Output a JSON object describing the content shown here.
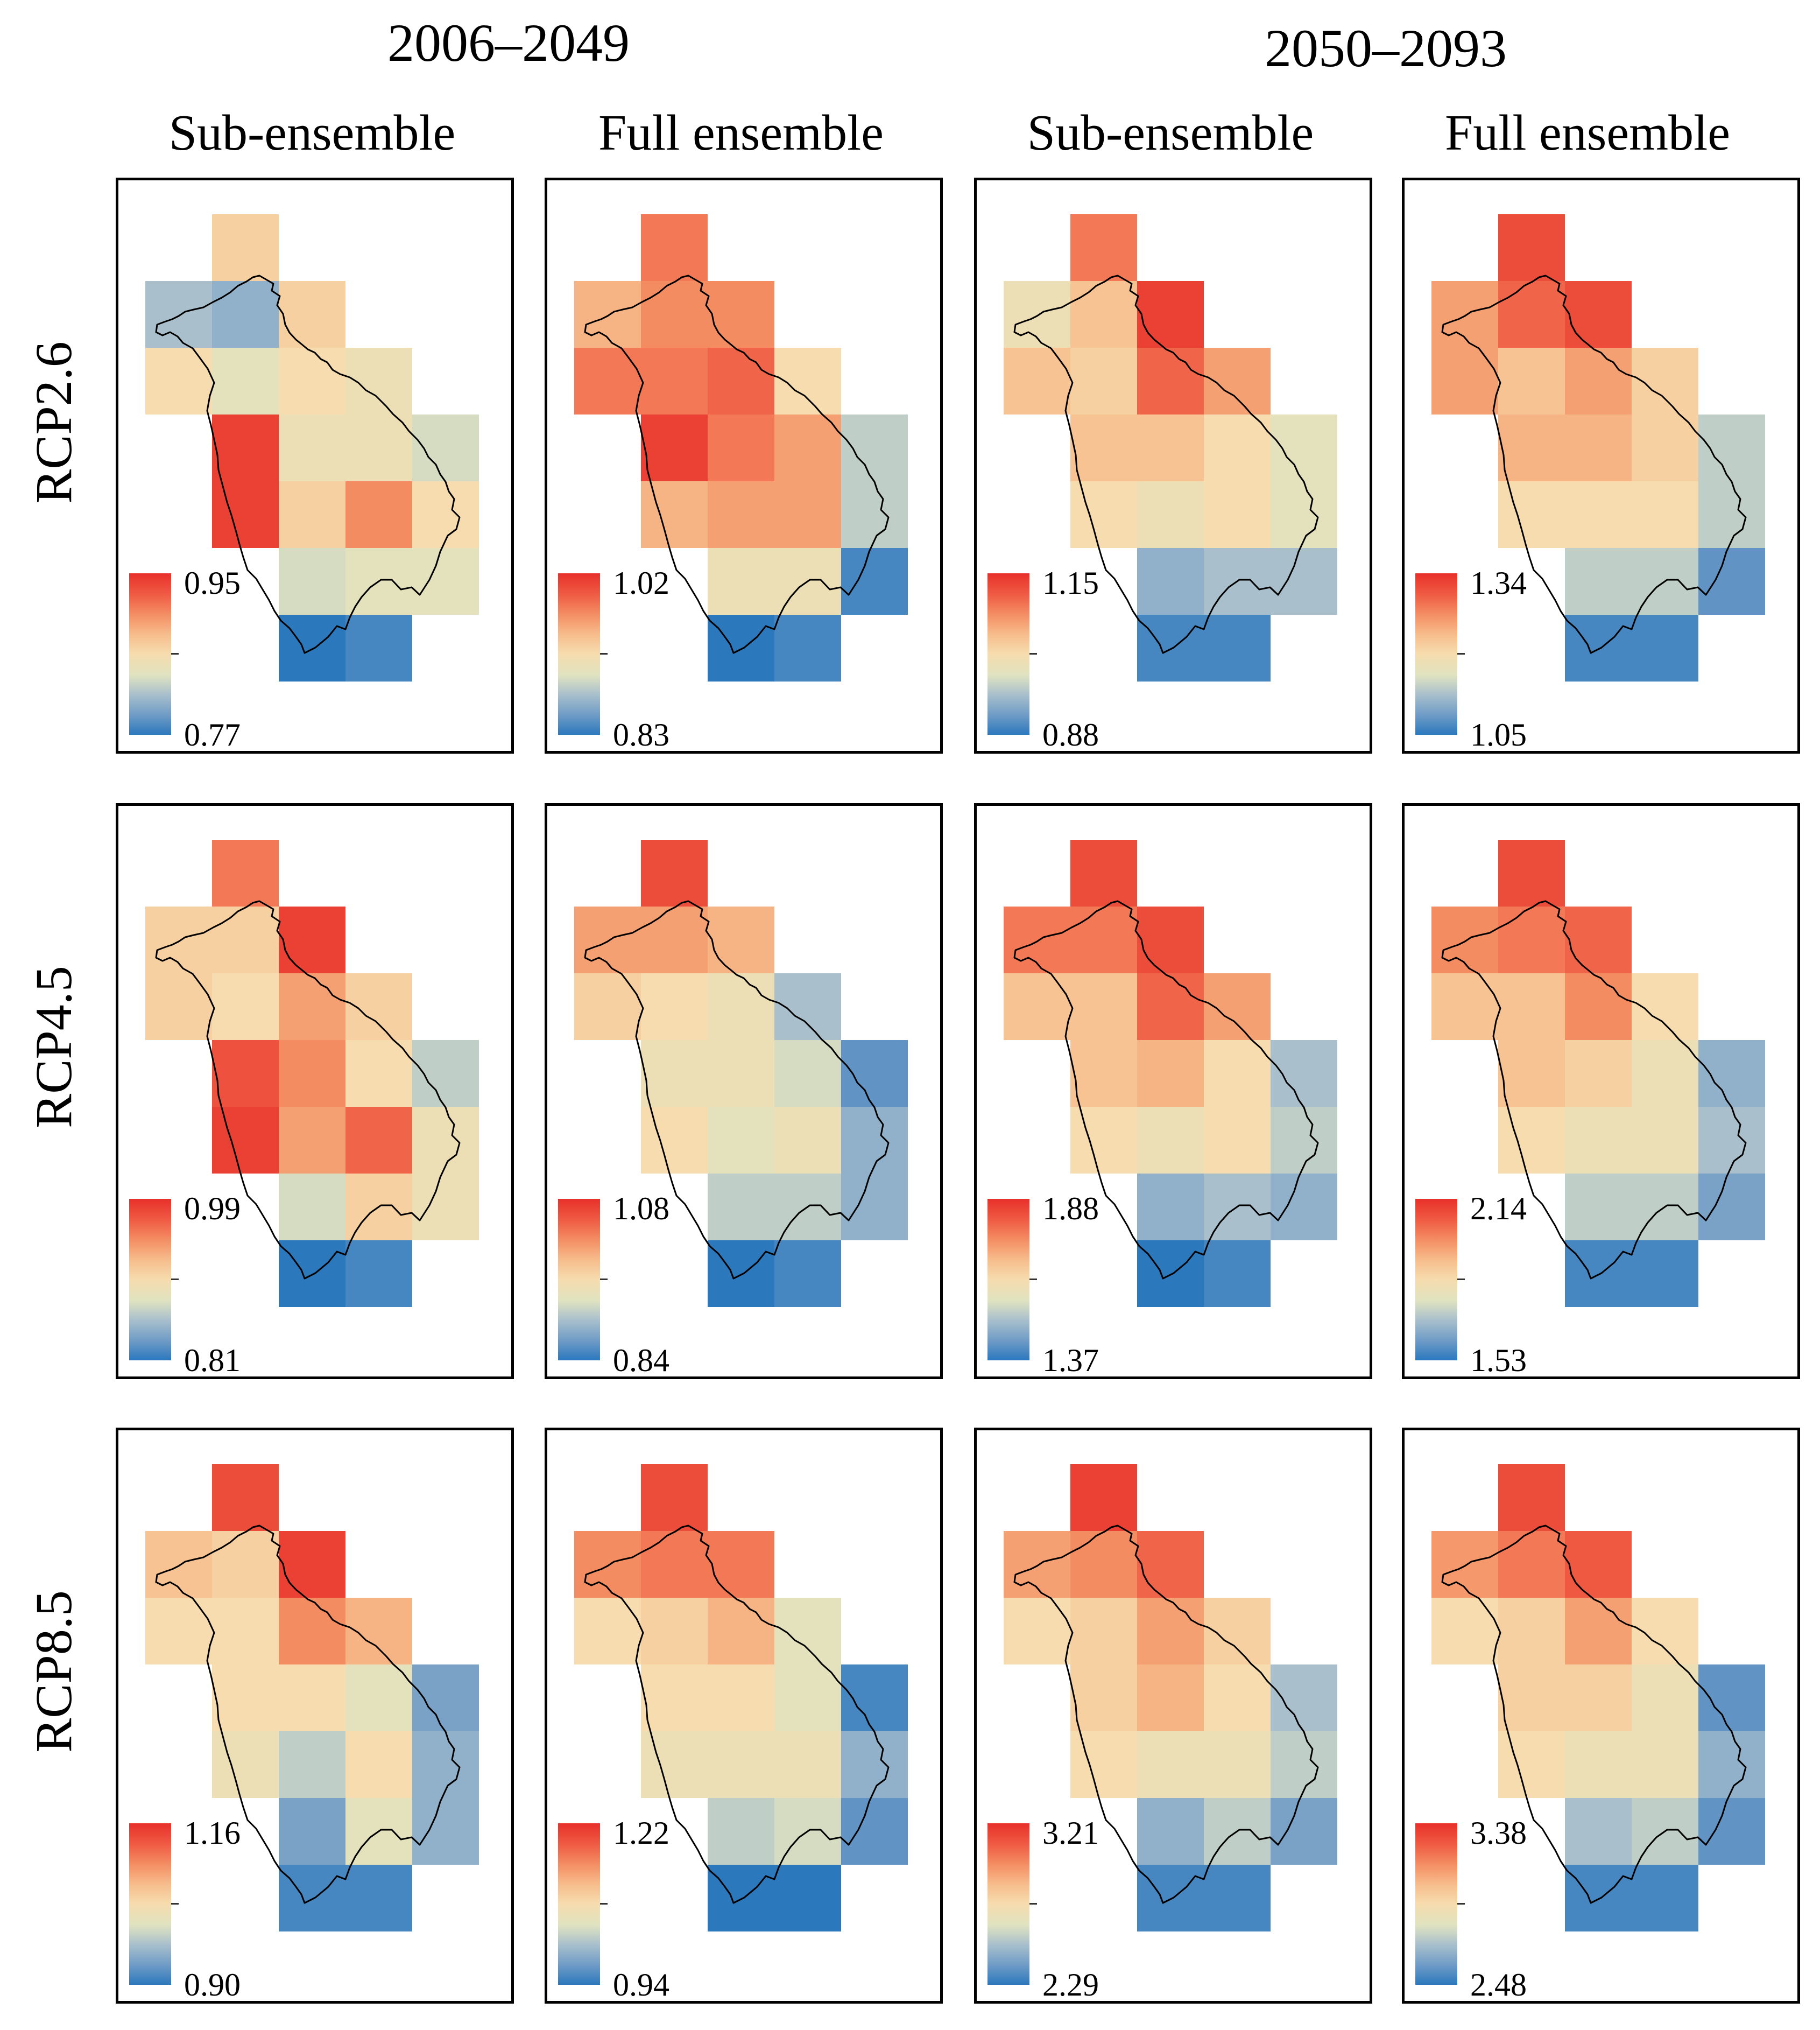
{
  "periods": [
    {
      "label": "2006–2049"
    },
    {
      "label": "2050–2093"
    }
  ],
  "column_headers": [
    "Sub-ensemble",
    "Full ensemble",
    "Sub-ensemble",
    "Full ensemble"
  ],
  "scenarios": [
    "RCP2.6",
    "RCP4.5",
    "RCP8.5"
  ],
  "colormap": [
    "#2b78bd",
    "#6e9bc6",
    "#a9c0cc",
    "#e0e3c0",
    "#f6dcae",
    "#f7bd8c",
    "#f48c62",
    "#ef5b43",
    "#e8302a"
  ],
  "panels": [
    {
      "scenario": "RCP2.6",
      "period": "2006–2049",
      "ensemble": "Sub-ensemble",
      "cbar_max": "0.95",
      "cbar_min": "0.77",
      "grid": [
        [
          null,
          0.55,
          null,
          null,
          null
        ],
        [
          0.25,
          0.2,
          0.55,
          null,
          null
        ],
        [
          0.5,
          0.4,
          0.5,
          0.45,
          null
        ],
        [
          null,
          0.95,
          0.45,
          0.45,
          0.35
        ],
        [
          null,
          0.95,
          0.55,
          0.75,
          0.5
        ],
        [
          null,
          null,
          0.35,
          0.4,
          0.4
        ],
        [
          null,
          null,
          0.0,
          0.05,
          null
        ]
      ]
    },
    {
      "scenario": "RCP2.6",
      "period": "2006–2049",
      "ensemble": "Full ensemble",
      "cbar_max": "1.02",
      "cbar_min": "0.83",
      "grid": [
        [
          null,
          0.8,
          null,
          null,
          null
        ],
        [
          0.65,
          0.75,
          0.75,
          null,
          null
        ],
        [
          0.8,
          0.8,
          0.85,
          0.5,
          null
        ],
        [
          null,
          0.95,
          0.8,
          0.7,
          0.3
        ],
        [
          null,
          0.65,
          0.7,
          0.7,
          0.3
        ],
        [
          null,
          null,
          0.45,
          0.45,
          0.05
        ],
        [
          null,
          null,
          0.0,
          0.05,
          null
        ]
      ]
    },
    {
      "scenario": "RCP2.6",
      "period": "2050–2093",
      "ensemble": "Sub-ensemble",
      "cbar_max": "1.15",
      "cbar_min": "0.88",
      "grid": [
        [
          null,
          0.8,
          null,
          null,
          null
        ],
        [
          0.45,
          0.6,
          0.95,
          null,
          null
        ],
        [
          0.6,
          0.55,
          0.85,
          0.7,
          null
        ],
        [
          null,
          0.6,
          0.6,
          0.5,
          0.4
        ],
        [
          null,
          0.5,
          0.45,
          0.5,
          0.4
        ],
        [
          null,
          null,
          0.2,
          0.25,
          0.25
        ],
        [
          null,
          null,
          0.05,
          0.05,
          null
        ]
      ]
    },
    {
      "scenario": "RCP2.6",
      "period": "2050–2093",
      "ensemble": "Full ensemble",
      "cbar_max": "1.34",
      "cbar_min": "1.05",
      "grid": [
        [
          null,
          0.92,
          null,
          null,
          null
        ],
        [
          0.7,
          0.85,
          0.92,
          null,
          null
        ],
        [
          0.7,
          0.6,
          0.7,
          0.55,
          null
        ],
        [
          null,
          0.65,
          0.65,
          0.55,
          0.3
        ],
        [
          null,
          0.5,
          0.5,
          0.5,
          0.3
        ],
        [
          null,
          null,
          0.3,
          0.3,
          0.1
        ],
        [
          null,
          null,
          0.05,
          0.05,
          null
        ]
      ]
    },
    {
      "scenario": "RCP4.5",
      "period": "2006–2049",
      "ensemble": "Sub-ensemble",
      "cbar_max": "0.99",
      "cbar_min": "0.81",
      "grid": [
        [
          null,
          0.8,
          null,
          null,
          null
        ],
        [
          0.55,
          0.55,
          0.95,
          null,
          null
        ],
        [
          0.55,
          0.5,
          0.7,
          0.55,
          null
        ],
        [
          null,
          0.9,
          0.75,
          0.5,
          0.3
        ],
        [
          null,
          0.95,
          0.7,
          0.85,
          0.45
        ],
        [
          null,
          null,
          0.35,
          0.55,
          0.45
        ],
        [
          null,
          null,
          0.0,
          0.05,
          null
        ]
      ]
    },
    {
      "scenario": "RCP4.5",
      "period": "2006–2049",
      "ensemble": "Full ensemble",
      "cbar_max": "1.08",
      "cbar_min": "0.84",
      "grid": [
        [
          null,
          0.92,
          null,
          null,
          null
        ],
        [
          0.7,
          0.7,
          0.65,
          null,
          null
        ],
        [
          0.55,
          0.5,
          0.45,
          0.25,
          null
        ],
        [
          null,
          0.45,
          0.45,
          0.35,
          0.1
        ],
        [
          null,
          0.5,
          0.4,
          0.45,
          0.2
        ],
        [
          null,
          null,
          0.3,
          0.3,
          0.2
        ],
        [
          null,
          null,
          0.0,
          0.05,
          null
        ]
      ]
    },
    {
      "scenario": "RCP4.5",
      "period": "2050–2093",
      "ensemble": "Sub-ensemble",
      "cbar_max": "1.88",
      "cbar_min": "1.37",
      "grid": [
        [
          null,
          0.92,
          null,
          null,
          null
        ],
        [
          0.8,
          0.8,
          0.92,
          null,
          null
        ],
        [
          0.6,
          0.6,
          0.85,
          0.7,
          null
        ],
        [
          null,
          0.6,
          0.65,
          0.5,
          0.25
        ],
        [
          null,
          0.5,
          0.45,
          0.5,
          0.3
        ],
        [
          null,
          null,
          0.2,
          0.25,
          0.2
        ],
        [
          null,
          null,
          0.0,
          0.05,
          null
        ]
      ]
    },
    {
      "scenario": "RCP4.5",
      "period": "2050–2093",
      "ensemble": "Full ensemble",
      "cbar_max": "2.14",
      "cbar_min": "1.53",
      "grid": [
        [
          null,
          0.92,
          null,
          null,
          null
        ],
        [
          0.75,
          0.8,
          0.85,
          null,
          null
        ],
        [
          0.6,
          0.6,
          0.75,
          0.5,
          null
        ],
        [
          null,
          0.6,
          0.55,
          0.45,
          0.2
        ],
        [
          null,
          0.5,
          0.45,
          0.45,
          0.25
        ],
        [
          null,
          null,
          0.3,
          0.3,
          0.15
        ],
        [
          null,
          null,
          0.05,
          0.05,
          null
        ]
      ]
    },
    {
      "scenario": "RCP8.5",
      "period": "2006–2049",
      "ensemble": "Sub-ensemble",
      "cbar_max": "1.16",
      "cbar_min": "0.90",
      "grid": [
        [
          null,
          0.92,
          null,
          null,
          null
        ],
        [
          0.6,
          0.55,
          0.95,
          null,
          null
        ],
        [
          0.5,
          0.5,
          0.75,
          0.65,
          null
        ],
        [
          null,
          0.5,
          0.5,
          0.4,
          0.15
        ],
        [
          null,
          0.45,
          0.3,
          0.5,
          0.2
        ],
        [
          null,
          null,
          0.15,
          0.4,
          0.2
        ],
        [
          null,
          null,
          0.05,
          0.05,
          null
        ]
      ]
    },
    {
      "scenario": "RCP8.5",
      "period": "2006–2049",
      "ensemble": "Full ensemble",
      "cbar_max": "1.22",
      "cbar_min": "0.94",
      "grid": [
        [
          null,
          0.92,
          null,
          null,
          null
        ],
        [
          0.75,
          0.8,
          0.8,
          null,
          null
        ],
        [
          0.5,
          0.55,
          0.65,
          0.4,
          null
        ],
        [
          null,
          0.5,
          0.5,
          0.4,
          0.05
        ],
        [
          null,
          0.45,
          0.45,
          0.45,
          0.2
        ],
        [
          null,
          null,
          0.3,
          0.35,
          0.1
        ],
        [
          null,
          null,
          0.0,
          0.0,
          null
        ]
      ]
    },
    {
      "scenario": "RCP8.5",
      "period": "2050–2093",
      "ensemble": "Sub-ensemble",
      "cbar_max": "3.21",
      "cbar_min": "2.29",
      "grid": [
        [
          null,
          0.95,
          null,
          null,
          null
        ],
        [
          0.7,
          0.75,
          0.85,
          null,
          null
        ],
        [
          0.5,
          0.55,
          0.7,
          0.55,
          null
        ],
        [
          null,
          0.55,
          0.65,
          0.5,
          0.25
        ],
        [
          null,
          0.5,
          0.45,
          0.45,
          0.3
        ],
        [
          null,
          null,
          0.2,
          0.3,
          0.15
        ],
        [
          null,
          null,
          0.05,
          0.05,
          null
        ]
      ]
    },
    {
      "scenario": "RCP8.5",
      "period": "2050–2093",
      "ensemble": "Full ensemble",
      "cbar_max": "3.38",
      "cbar_min": "2.48",
      "grid": [
        [
          null,
          0.92,
          null,
          null,
          null
        ],
        [
          0.72,
          0.8,
          0.88,
          null,
          null
        ],
        [
          0.5,
          0.55,
          0.7,
          0.5,
          null
        ],
        [
          null,
          0.55,
          0.55,
          0.45,
          0.1
        ],
        [
          null,
          0.5,
          0.45,
          0.45,
          0.2
        ],
        [
          null,
          null,
          0.25,
          0.3,
          0.1
        ],
        [
          null,
          null,
          0.05,
          0.05,
          null
        ]
      ]
    }
  ]
}
